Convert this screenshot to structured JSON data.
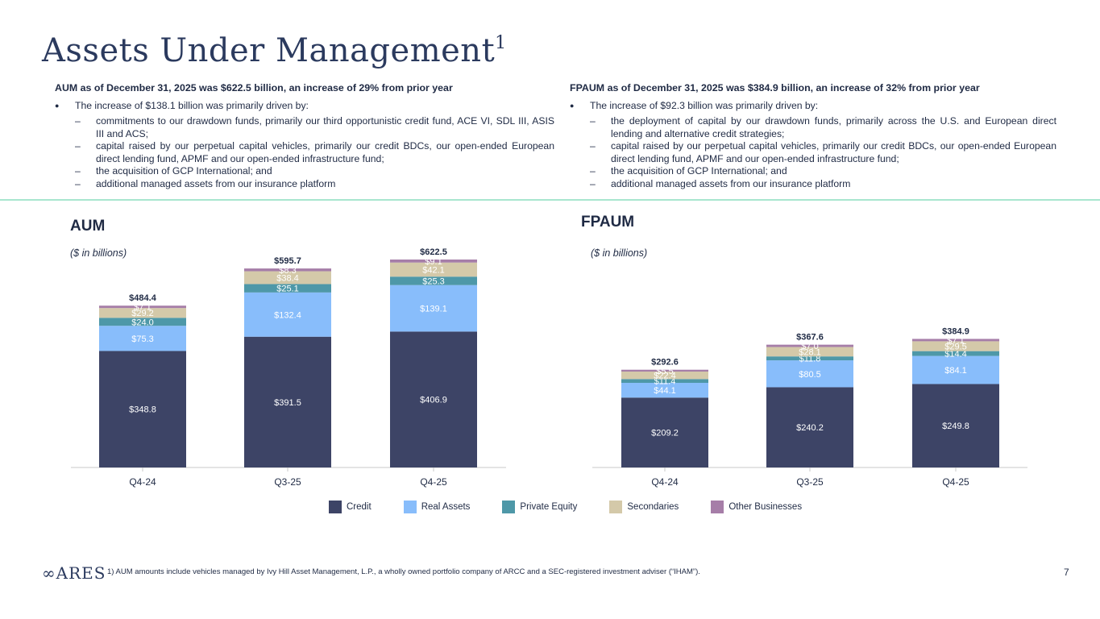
{
  "page": {
    "title": "Assets Under Management",
    "title_sup": "1",
    "page_number": "7",
    "logo_text": "ARES",
    "footnote": "1)  AUM amounts include vehicles managed by Ivy Hill Asset Management, L.P., a wholly owned portfolio company of ARCC and a SEC-registered investment adviser (“IHAM”)."
  },
  "left_text": {
    "heading": "AUM as of December 31, 2025 was $622.5 billion, an increase of 29% from prior year",
    "bullet": "The increase of $138.1 billion was primarily driven by:",
    "subs": [
      "commitments to our drawdown funds, primarily our third opportunistic credit fund, ACE VI, SDL III, ASIS III and ACS;",
      "capital raised by our perpetual capital vehicles, primarily our credit BDCs, our open-ended European direct lending fund, APMF and our open-ended infrastructure fund;",
      "the acquisition of GCP International; and",
      "additional managed assets from our insurance platform"
    ]
  },
  "right_text": {
    "heading": "FPAUM as of December 31, 2025 was $384.9 billion, an increase of 32% from prior year",
    "bullet": "The increase of $92.3 billion was primarily driven by:",
    "subs": [
      "the deployment of capital by our drawdown funds, primarily across the U.S. and European direct lending and alternative credit strategies;",
      "capital raised by our perpetual capital vehicles, primarily our credit BDCs, our open-ended European direct lending fund, APMF and our open-ended infrastructure fund;",
      "the acquisition of GCP International; and",
      "additional managed assets from our insurance platform"
    ]
  },
  "legend": [
    {
      "name": "Credit",
      "color": "#3d4466"
    },
    {
      "name": "Real Assets",
      "color": "#88bdfb"
    },
    {
      "name": "Private Equity",
      "color": "#4e98a8"
    },
    {
      "name": "Secondaries",
      "color": "#d4c9a9"
    },
    {
      "name": "Other Businesses",
      "color": "#a67ea8"
    }
  ],
  "chart_data": [
    {
      "type": "bar",
      "stacked": true,
      "title": "AUM",
      "subtitle": "($ in billions)",
      "categories": [
        "Q4-24",
        "Q3-25",
        "Q4-25"
      ],
      "series": [
        {
          "name": "Credit",
          "values": [
            348.8,
            391.5,
            406.9
          ],
          "labels": [
            "$348.8",
            "$391.5",
            "$406.9"
          ]
        },
        {
          "name": "Real Assets",
          "values": [
            75.3,
            132.4,
            139.1
          ],
          "labels": [
            "$75.3",
            "$132.4",
            "$139.1"
          ]
        },
        {
          "name": "Private Equity",
          "values": [
            24.0,
            25.1,
            25.3
          ],
          "labels": [
            "$24.0",
            "$25.1",
            "$25.3"
          ]
        },
        {
          "name": "Secondaries",
          "values": [
            29.2,
            38.4,
            42.1
          ],
          "labels": [
            "$29.2",
            "$38.4",
            "$42.1"
          ]
        },
        {
          "name": "Other Businesses",
          "values": [
            7.1,
            8.3,
            9.1
          ],
          "labels": [
            "$7.1",
            "$8.3",
            "$9.1"
          ]
        }
      ],
      "totals": [
        "$484.4",
        "$595.7",
        "$622.5"
      ],
      "ylim": [
        0,
        650
      ]
    },
    {
      "type": "bar",
      "stacked": true,
      "title": "FPAUM",
      "subtitle": "($ in billions)",
      "categories": [
        "Q4-24",
        "Q3-25",
        "Q4-25"
      ],
      "series": [
        {
          "name": "Credit",
          "values": [
            209.2,
            240.2,
            249.8
          ],
          "labels": [
            "$209.2",
            "$240.2",
            "$249.8"
          ]
        },
        {
          "name": "Real Assets",
          "values": [
            44.1,
            80.5,
            84.1
          ],
          "labels": [
            "$44.1",
            "$80.5",
            "$84.1"
          ]
        },
        {
          "name": "Private Equity",
          "values": [
            11.4,
            11.8,
            14.4
          ],
          "labels": [
            "$11.4",
            "$11.8",
            "$14.4"
          ]
        },
        {
          "name": "Secondaries",
          "values": [
            22.4,
            28.1,
            29.5
          ],
          "labels": [
            "$22.4",
            "$28.1",
            "$29.5"
          ]
        },
        {
          "name": "Other Businesses",
          "values": [
            5.5,
            7.0,
            7.1
          ],
          "labels": [
            "$5.5",
            "$7.0",
            "$7.1"
          ]
        }
      ],
      "totals": [
        "$292.6",
        "$367.6",
        "$384.9"
      ],
      "ylim": [
        0,
        650
      ]
    }
  ]
}
